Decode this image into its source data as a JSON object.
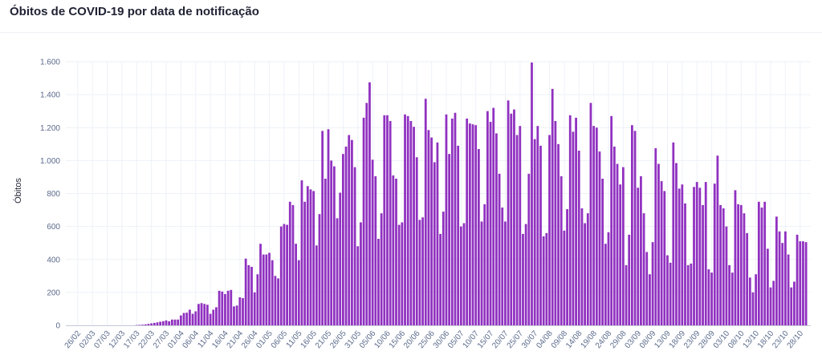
{
  "header": {
    "title": "Óbitos de COVID-19 por data de notificação"
  },
  "chart_data": {
    "type": "bar",
    "title": "Óbitos de COVID-19 por data de notificação",
    "xlabel": "",
    "ylabel": "Óbitos",
    "ylim": [
      0,
      1600
    ],
    "grid": true,
    "color": "#9031c0",
    "start_date": "26/02",
    "y_ticks": [
      {
        "v": 0,
        "label": "0"
      },
      {
        "v": 200,
        "label": "200"
      },
      {
        "v": 400,
        "label": "400"
      },
      {
        "v": 600,
        "label": "600"
      },
      {
        "v": 800,
        "label": "800"
      },
      {
        "v": 1000,
        "label": "1.000"
      },
      {
        "v": 1200,
        "label": "1.200"
      },
      {
        "v": 1400,
        "label": "1.400"
      },
      {
        "v": 1600,
        "label": "1.600"
      }
    ],
    "x_tick_every": 5,
    "x_ticks": [
      "26/02",
      "02/03",
      "07/03",
      "12/03",
      "17/03",
      "22/03",
      "27/03",
      "01/04",
      "06/04",
      "11/04",
      "16/04",
      "21/04",
      "26/04",
      "01/05",
      "06/05",
      "11/05",
      "16/05",
      "21/05",
      "26/05",
      "31/05",
      "05/06",
      "10/06",
      "15/06",
      "20/06",
      "25/06",
      "30/06",
      "05/07",
      "10/07",
      "15/07",
      "20/07",
      "25/07",
      "30/07",
      "04/08",
      "09/08",
      "14/08",
      "19/08",
      "24/08",
      "29/08",
      "03/09",
      "08/09",
      "13/09",
      "18/09",
      "23/09",
      "28/09",
      "03/10",
      "08/10",
      "13/10",
      "18/10",
      "23/10",
      "28/10"
    ],
    "values": [
      0,
      0,
      0,
      0,
      0,
      0,
      0,
      0,
      0,
      0,
      0,
      0,
      0,
      0,
      0,
      0,
      0,
      0,
      0,
      0,
      2,
      3,
      4,
      6,
      9,
      12,
      15,
      18,
      22,
      25,
      30,
      25,
      35,
      35,
      35,
      60,
      75,
      77,
      95,
      70,
      85,
      130,
      135,
      130,
      125,
      70,
      95,
      110,
      210,
      205,
      190,
      210,
      215,
      115,
      120,
      170,
      165,
      405,
      365,
      355,
      200,
      310,
      495,
      430,
      430,
      440,
      395,
      300,
      285,
      600,
      615,
      610,
      750,
      730,
      495,
      395,
      880,
      750,
      845,
      825,
      815,
      485,
      675,
      1180,
      890,
      1190,
      1000,
      965,
      650,
      805,
      1040,
      1085,
      1155,
      1125,
      960,
      480,
      625,
      1260,
      1350,
      1475,
      1005,
      905,
      525,
      680,
      1275,
      1275,
      1240,
      910,
      890,
      610,
      625,
      1280,
      1270,
      1240,
      1205,
      1020,
      640,
      655,
      1375,
      1185,
      1140,
      990,
      1110,
      555,
      690,
      1280,
      1040,
      1255,
      1290,
      1090,
      600,
      620,
      1255,
      1225,
      1220,
      1215,
      1070,
      630,
      735,
      1300,
      1235,
      1320,
      1165,
      920,
      715,
      630,
      1365,
      1285,
      1310,
      1155,
      1210,
      555,
      615,
      920,
      1595,
      1130,
      1210,
      1090,
      540,
      560,
      1155,
      1435,
      1240,
      1100,
      905,
      575,
      705,
      1275,
      1175,
      1260,
      1060,
      710,
      620,
      680,
      1350,
      1210,
      1200,
      1055,
      890,
      495,
      565,
      1270,
      1085,
      980,
      855,
      960,
      365,
      550,
      1215,
      1180,
      835,
      905,
      680,
      445,
      310,
      505,
      1075,
      980,
      875,
      815,
      425,
      380,
      1110,
      985,
      830,
      855,
      740,
      365,
      375,
      840,
      870,
      835,
      730,
      870,
      340,
      320,
      860,
      1030,
      730,
      710,
      600,
      365,
      320,
      820,
      735,
      730,
      680,
      560,
      290,
      200,
      310,
      750,
      715,
      750,
      465,
      230,
      270,
      660,
      570,
      500,
      570,
      430,
      230,
      265,
      550,
      510,
      510,
      505
    ]
  }
}
